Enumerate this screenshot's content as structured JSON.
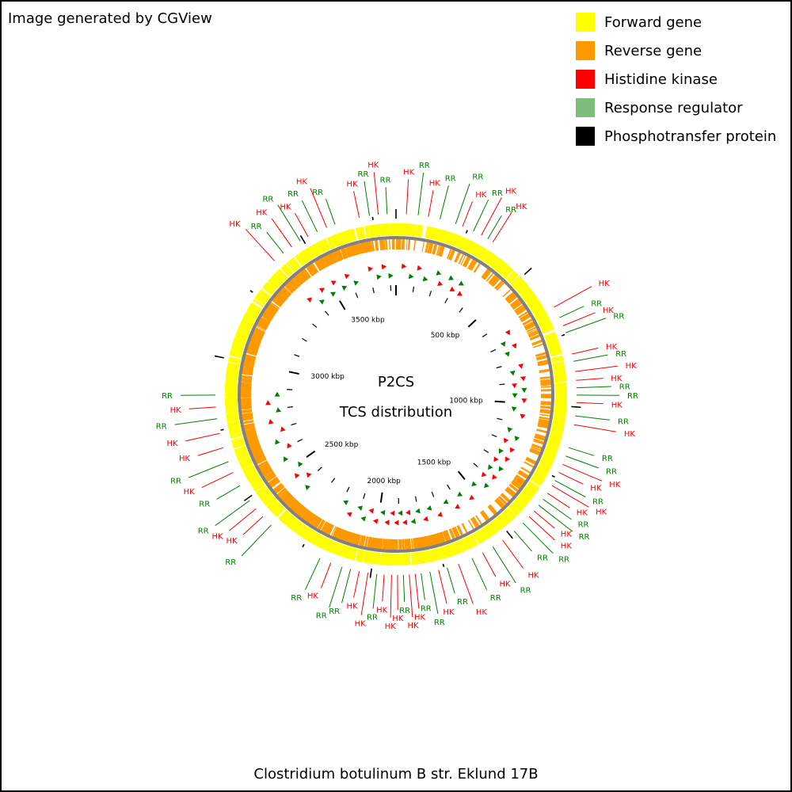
{
  "credit": "Image generated by CGView",
  "legend": [
    {
      "label": "Forward gene",
      "color": "#ffff00"
    },
    {
      "label": "Reverse gene",
      "color": "#ff9900"
    },
    {
      "label": "Histidine kinase",
      "color": "#ff0000"
    },
    {
      "label": "Response regulator",
      "color": "#7dbe7d"
    },
    {
      "label": "Phosphotransfer protein",
      "color": "#000000"
    }
  ],
  "center": {
    "line1": "P2CS",
    "line2": "TCS distribution"
  },
  "caption": "Clostridium botulinum B str. Eklund 17B",
  "genome": {
    "length_kbp": 3830,
    "tick_labels": [
      {
        "kbp": 500,
        "label": "500 kbp"
      },
      {
        "kbp": 1000,
        "label": "1000 kbp"
      },
      {
        "kbp": 1500,
        "label": "1500 kbp"
      },
      {
        "kbp": 2000,
        "label": "2000 kbp"
      },
      {
        "kbp": 2500,
        "label": "2500 kbp"
      },
      {
        "kbp": 3000,
        "label": "3000 kbp"
      },
      {
        "kbp": 3500,
        "label": "3500 kbp"
      }
    ],
    "colors": {
      "forward": "#ffff00",
      "reverse": "#ff9900",
      "backbone": "#808080",
      "hk": "#ff0000",
      "rr": "#008000",
      "hk_marker": "#ff0000",
      "rr_marker": "#008000"
    },
    "features": [
      {
        "kbp": 3705,
        "label": "HK"
      },
      {
        "kbp": 3740,
        "label": "RR"
      },
      {
        "kbp": 3770,
        "label": "HK"
      },
      {
        "kbp": 3800,
        "label": "RR"
      },
      {
        "kbp": 35,
        "label": "HK"
      },
      {
        "kbp": 75,
        "label": "RR"
      },
      {
        "kbp": 110,
        "label": "HK"
      },
      {
        "kbp": 150,
        "label": "RR"
      },
      {
        "kbp": 205,
        "label": "RR"
      },
      {
        "kbp": 230,
        "label": "HK"
      },
      {
        "kbp": 270,
        "label": "RR"
      },
      {
        "kbp": 300,
        "label": "HK"
      },
      {
        "kbp": 325,
        "label": "RR"
      },
      {
        "kbp": 345,
        "label": "HK"
      },
      {
        "kbp": 650,
        "label": "HK"
      },
      {
        "kbp": 690,
        "label": "RR"
      },
      {
        "kbp": 720,
        "label": "HK"
      },
      {
        "kbp": 745,
        "label": "RR"
      },
      {
        "kbp": 820,
        "label": "HK"
      },
      {
        "kbp": 845,
        "label": "RR"
      },
      {
        "kbp": 880,
        "label": "HK"
      },
      {
        "kbp": 910,
        "label": "HK"
      },
      {
        "kbp": 935,
        "label": "RR"
      },
      {
        "kbp": 960,
        "label": "RR"
      },
      {
        "kbp": 985,
        "label": "HK"
      },
      {
        "kbp": 1030,
        "label": "RR"
      },
      {
        "kbp": 1060,
        "label": "HK"
      },
      {
        "kbp": 1140,
        "label": "RR"
      },
      {
        "kbp": 1170,
        "label": "RR"
      },
      {
        "kbp": 1200,
        "label": "HK"
      },
      {
        "kbp": 1230,
        "label": "HK"
      },
      {
        "kbp": 1260,
        "label": "RR"
      },
      {
        "kbp": 1280,
        "label": "HK"
      },
      {
        "kbp": 1310,
        "label": "HK"
      },
      {
        "kbp": 1335,
        "label": "RR"
      },
      {
        "kbp": 1360,
        "label": "RR"
      },
      {
        "kbp": 1385,
        "label": "HK"
      },
      {
        "kbp": 1410,
        "label": "HK"
      },
      {
        "kbp": 1440,
        "label": "RR"
      },
      {
        "kbp": 1480,
        "label": "RR"
      },
      {
        "kbp": 1530,
        "label": "HK"
      },
      {
        "kbp": 1570,
        "label": "RR"
      },
      {
        "kbp": 1610,
        "label": "HK"
      },
      {
        "kbp": 1650,
        "label": "RR"
      },
      {
        "kbp": 1700,
        "label": "HK"
      },
      {
        "kbp": 1740,
        "label": "RR"
      },
      {
        "kbp": 1770,
        "label": "HK"
      },
      {
        "kbp": 1800,
        "label": "RR"
      },
      {
        "kbp": 1830,
        "label": "RR"
      },
      {
        "kbp": 1850,
        "label": "HK"
      },
      {
        "kbp": 1870,
        "label": "HK"
      },
      {
        "kbp": 1890,
        "label": "RR"
      },
      {
        "kbp": 1910,
        "label": "HK"
      },
      {
        "kbp": 1930,
        "label": "HK"
      },
      {
        "kbp": 1955,
        "label": "HK"
      },
      {
        "kbp": 1980,
        "label": "RR"
      },
      {
        "kbp": 2010,
        "label": "HK"
      },
      {
        "kbp": 2040,
        "label": "HK"
      },
      {
        "kbp": 2070,
        "label": "RR"
      },
      {
        "kbp": 2100,
        "label": "RR"
      },
      {
        "kbp": 2140,
        "label": "HK"
      },
      {
        "kbp": 2180,
        "label": "RR"
      },
      {
        "kbp": 2380,
        "label": "RR"
      },
      {
        "kbp": 2420,
        "label": "HK"
      },
      {
        "kbp": 2455,
        "label": "HK"
      },
      {
        "kbp": 2490,
        "label": "RR"
      },
      {
        "kbp": 2550,
        "label": "RR"
      },
      {
        "kbp": 2600,
        "label": "HK"
      },
      {
        "kbp": 2640,
        "label": "RR"
      },
      {
        "kbp": 2690,
        "label": "HK"
      },
      {
        "kbp": 2740,
        "label": "HK"
      },
      {
        "kbp": 2790,
        "label": "RR"
      },
      {
        "kbp": 2830,
        "label": "HK"
      },
      {
        "kbp": 2870,
        "label": "RR"
      },
      {
        "kbp": 3380,
        "label": "HK"
      },
      {
        "kbp": 3420,
        "label": "RR"
      },
      {
        "kbp": 3455,
        "label": "HK"
      },
      {
        "kbp": 3490,
        "label": "RR"
      },
      {
        "kbp": 3520,
        "label": "HK"
      },
      {
        "kbp": 3555,
        "label": "RR"
      },
      {
        "kbp": 3590,
        "label": "HK"
      },
      {
        "kbp": 3620,
        "label": "RR"
      }
    ]
  }
}
